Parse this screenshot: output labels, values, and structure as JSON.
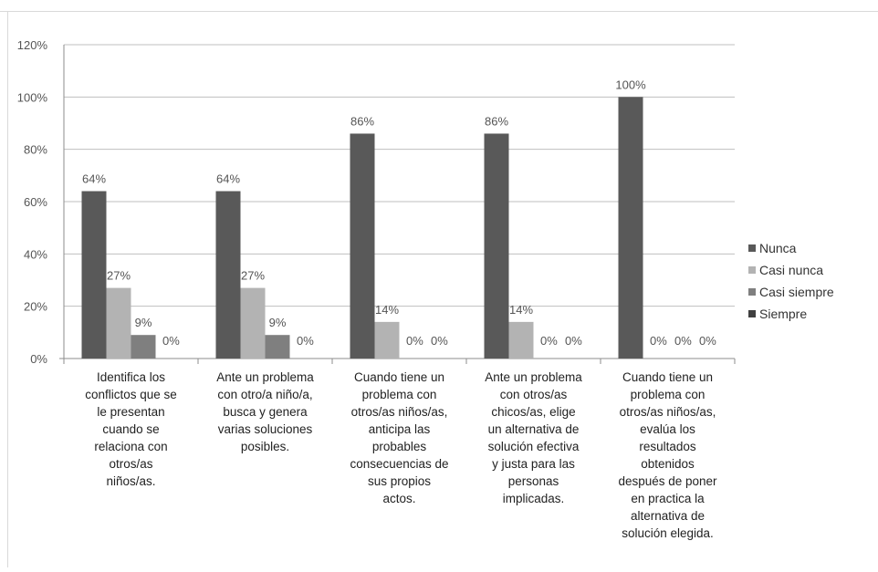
{
  "chart_data": {
    "type": "bar",
    "categories": [
      [
        "Identifica los",
        "conflictos que se",
        "le presentan",
        "cuando se",
        "relaciona con",
        "otros/as",
        "niños/as."
      ],
      [
        "Ante un problema",
        "con otro/a niño/a,",
        "busca y genera",
        "varias soluciones",
        "posibles."
      ],
      [
        "Cuando tiene un",
        "problema con",
        "otros/as niños/as,",
        "anticipa las",
        "probables",
        "consecuencias de",
        "sus propios",
        "actos."
      ],
      [
        "Ante un problema",
        "con otros/as",
        "chicos/as, elige",
        "un alternativa de",
        "solución efectiva",
        "y justa para las",
        "personas",
        "implicadas."
      ],
      [
        "Cuando tiene un",
        "problema con",
        "otros/as niños/as,",
        "evalúa los",
        "resultados",
        "obtenidos",
        "después de poner",
        "en practica la",
        "alternativa de",
        "solución elegida."
      ]
    ],
    "series": [
      {
        "name": "Nunca",
        "color": "#595959",
        "values": [
          64,
          64,
          86,
          86,
          100
        ],
        "labels": [
          "64%",
          "64%",
          "86%",
          "86%",
          "100%"
        ]
      },
      {
        "name": "Casi nunca",
        "color": "#b3b3b3",
        "values": [
          27,
          27,
          14,
          14,
          0
        ],
        "labels": [
          "27%",
          "27%",
          "14%",
          "14%",
          "0%"
        ]
      },
      {
        "name": "Casi siempre",
        "color": "#7f7f7f",
        "values": [
          9,
          9,
          0,
          0,
          0
        ],
        "labels": [
          "9%",
          "9%",
          "0%",
          "0%",
          "0%"
        ]
      },
      {
        "name": "Siempre",
        "color": "#404040",
        "values": [
          0,
          0,
          0,
          0,
          0
        ],
        "labels": [
          "0%",
          "0%",
          "0%",
          "0%",
          "0%"
        ]
      }
    ],
    "yticks": [
      "0%",
      "20%",
      "40%",
      "60%",
      "80%",
      "100%",
      "120%"
    ],
    "ylim": [
      0,
      120
    ],
    "grid": true,
    "legend": "right"
  }
}
